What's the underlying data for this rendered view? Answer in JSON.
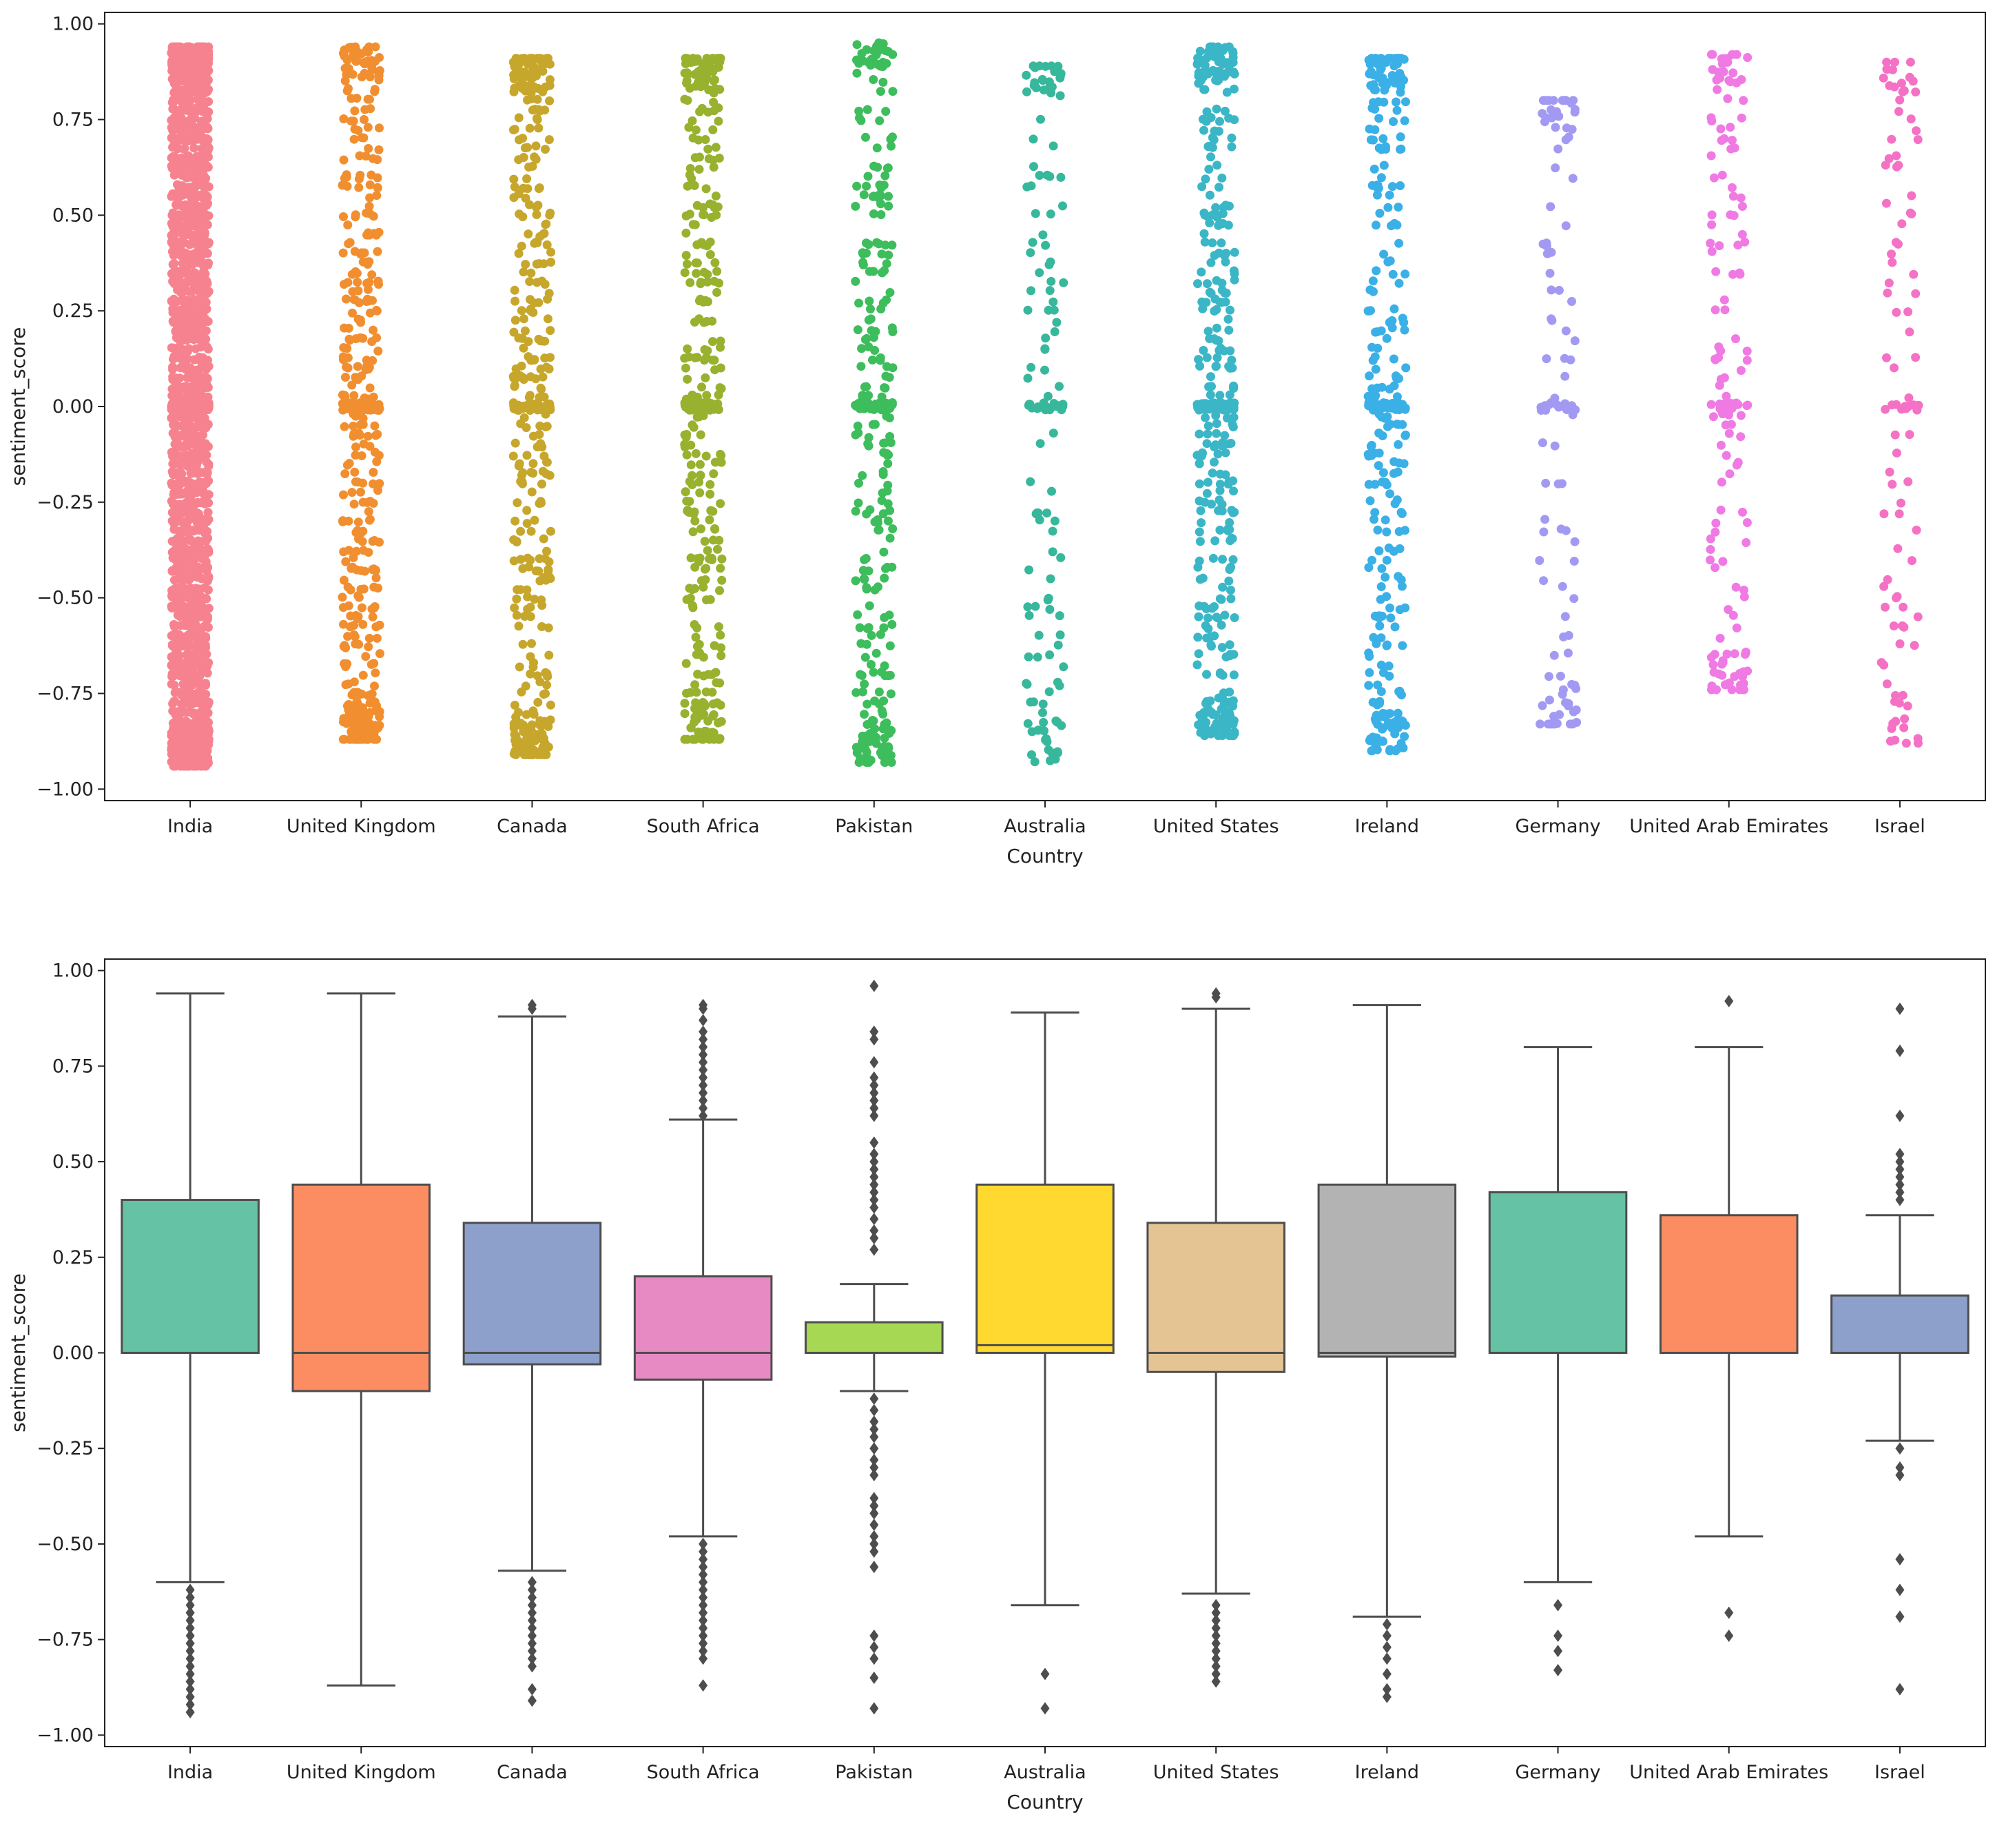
{
  "chart_data": [
    {
      "type": "strip",
      "xlabel": "Country",
      "ylabel": "sentiment_score",
      "ylim": [
        -1.03,
        1.03
      ],
      "yticks": [
        -1.0,
        -0.75,
        -0.5,
        -0.25,
        0.0,
        0.25,
        0.5,
        0.75,
        1.0
      ],
      "ytick_labels": [
        "−1.00",
        "−0.75",
        "−0.50",
        "−0.25",
        "0.00",
        "0.25",
        "0.50",
        "0.75",
        "1.00"
      ],
      "categories": [
        "India",
        "United Kingdom",
        "Canada",
        "South Africa",
        "Pakistan",
        "Australia",
        "United States",
        "Ireland",
        "Germany",
        "United Arab Emirates",
        "Israel"
      ],
      "colors": [
        "#f7828f",
        "#f18f30",
        "#c7a62c",
        "#98b12e",
        "#3dbd5c",
        "#37b79b",
        "#3bb6c6",
        "#3ab0e6",
        "#a29af2",
        "#f07ae4",
        "#f471c5"
      ],
      "point_counts": [
        2600,
        480,
        420,
        380,
        320,
        140,
        420,
        330,
        120,
        150,
        100
      ],
      "ranges": [
        [
          -0.94,
          0.94
        ],
        [
          -0.87,
          0.94
        ],
        [
          -0.91,
          0.91
        ],
        [
          -0.87,
          0.91
        ],
        [
          -0.93,
          0.96
        ],
        [
          -0.93,
          0.89
        ],
        [
          -0.86,
          0.94
        ],
        [
          -0.9,
          0.91
        ],
        [
          -0.83,
          0.8
        ],
        [
          -0.74,
          0.92
        ],
        [
          -0.88,
          0.9
        ]
      ]
    },
    {
      "type": "box",
      "xlabel": "Country",
      "ylabel": "sentiment_score",
      "ylim": [
        -1.03,
        1.03
      ],
      "yticks": [
        -1.0,
        -0.75,
        -0.5,
        -0.25,
        0.0,
        0.25,
        0.5,
        0.75,
        1.0
      ],
      "ytick_labels": [
        "−1.00",
        "−0.75",
        "−0.50",
        "−0.25",
        "0.00",
        "0.25",
        "0.50",
        "0.75",
        "1.00"
      ],
      "categories": [
        "India",
        "United Kingdom",
        "Canada",
        "South Africa",
        "Pakistan",
        "Australia",
        "United States",
        "Ireland",
        "Germany",
        "United Arab Emirates",
        "Israel"
      ],
      "colors": [
        "#66c2a5",
        "#fc8d62",
        "#8da0cb",
        "#e78ac3",
        "#a6d854",
        "#ffd92f",
        "#e5c494",
        "#b3b3b3",
        "#66c2a5",
        "#fc8d62",
        "#8da0cb"
      ],
      "boxes": [
        {
          "whislo": -0.6,
          "q1": 0.0,
          "med": 0.0,
          "q3": 0.4,
          "whishi": 0.94,
          "fliers": [
            -0.62,
            -0.64,
            -0.66,
            -0.68,
            -0.7,
            -0.72,
            -0.74,
            -0.76,
            -0.78,
            -0.8,
            -0.82,
            -0.84,
            -0.86,
            -0.88,
            -0.9,
            -0.92,
            -0.94
          ]
        },
        {
          "whislo": -0.87,
          "q1": -0.1,
          "med": 0.0,
          "q3": 0.44,
          "whishi": 0.94,
          "fliers": []
        },
        {
          "whislo": -0.57,
          "q1": -0.03,
          "med": 0.0,
          "q3": 0.34,
          "whishi": 0.88,
          "fliers": [
            0.9,
            0.91,
            -0.6,
            -0.62,
            -0.64,
            -0.66,
            -0.68,
            -0.7,
            -0.72,
            -0.74,
            -0.76,
            -0.78,
            -0.8,
            -0.82,
            -0.88,
            -0.91
          ]
        },
        {
          "whislo": -0.48,
          "q1": -0.07,
          "med": 0.0,
          "q3": 0.2,
          "whishi": 0.61,
          "fliers": [
            0.62,
            0.64,
            0.66,
            0.68,
            0.7,
            0.72,
            0.74,
            0.76,
            0.78,
            0.8,
            0.82,
            0.84,
            0.87,
            0.9,
            0.91,
            -0.5,
            -0.52,
            -0.54,
            -0.56,
            -0.58,
            -0.6,
            -0.62,
            -0.64,
            -0.66,
            -0.68,
            -0.7,
            -0.72,
            -0.74,
            -0.76,
            -0.78,
            -0.8,
            -0.87
          ]
        },
        {
          "whislo": -0.1,
          "q1": 0.0,
          "med": 0.0,
          "q3": 0.08,
          "whishi": 0.18,
          "fliers": [
            0.27,
            0.3,
            0.32,
            0.35,
            0.38,
            0.4,
            0.42,
            0.44,
            0.46,
            0.48,
            0.5,
            0.52,
            0.55,
            0.62,
            0.64,
            0.66,
            0.68,
            0.7,
            0.72,
            0.76,
            0.82,
            0.84,
            0.96,
            -0.12,
            -0.15,
            -0.18,
            -0.2,
            -0.22,
            -0.25,
            -0.28,
            -0.3,
            -0.32,
            -0.38,
            -0.4,
            -0.42,
            -0.45,
            -0.48,
            -0.5,
            -0.52,
            -0.56,
            -0.74,
            -0.77,
            -0.8,
            -0.85,
            -0.93
          ]
        },
        {
          "whislo": -0.66,
          "q1": 0.0,
          "med": 0.02,
          "q3": 0.44,
          "whishi": 0.89,
          "fliers": [
            -0.84,
            -0.93
          ]
        },
        {
          "whislo": -0.63,
          "q1": -0.05,
          "med": 0.0,
          "q3": 0.34,
          "whishi": 0.9,
          "fliers": [
            0.93,
            0.94,
            -0.66,
            -0.68,
            -0.7,
            -0.72,
            -0.74,
            -0.76,
            -0.78,
            -0.8,
            -0.82,
            -0.84,
            -0.86
          ]
        },
        {
          "whislo": -0.69,
          "q1": -0.01,
          "med": 0.0,
          "q3": 0.44,
          "whishi": 0.91,
          "fliers": [
            -0.71,
            -0.74,
            -0.77,
            -0.8,
            -0.84,
            -0.88,
            -0.9
          ]
        },
        {
          "whislo": -0.6,
          "q1": 0.0,
          "med": 0.0,
          "q3": 0.42,
          "whishi": 0.8,
          "fliers": [
            -0.66,
            -0.74,
            -0.78,
            -0.83
          ]
        },
        {
          "whislo": -0.48,
          "q1": 0.0,
          "med": 0.0,
          "q3": 0.36,
          "whishi": 0.8,
          "fliers": [
            0.92,
            -0.68,
            -0.74
          ]
        },
        {
          "whislo": -0.23,
          "q1": 0.0,
          "med": 0.0,
          "q3": 0.15,
          "whishi": 0.36,
          "fliers": [
            0.4,
            0.42,
            0.44,
            0.46,
            0.48,
            0.5,
            0.52,
            0.62,
            0.79,
            0.9,
            -0.25,
            -0.3,
            -0.32,
            -0.54,
            -0.62,
            -0.69,
            -0.88
          ]
        }
      ]
    }
  ]
}
